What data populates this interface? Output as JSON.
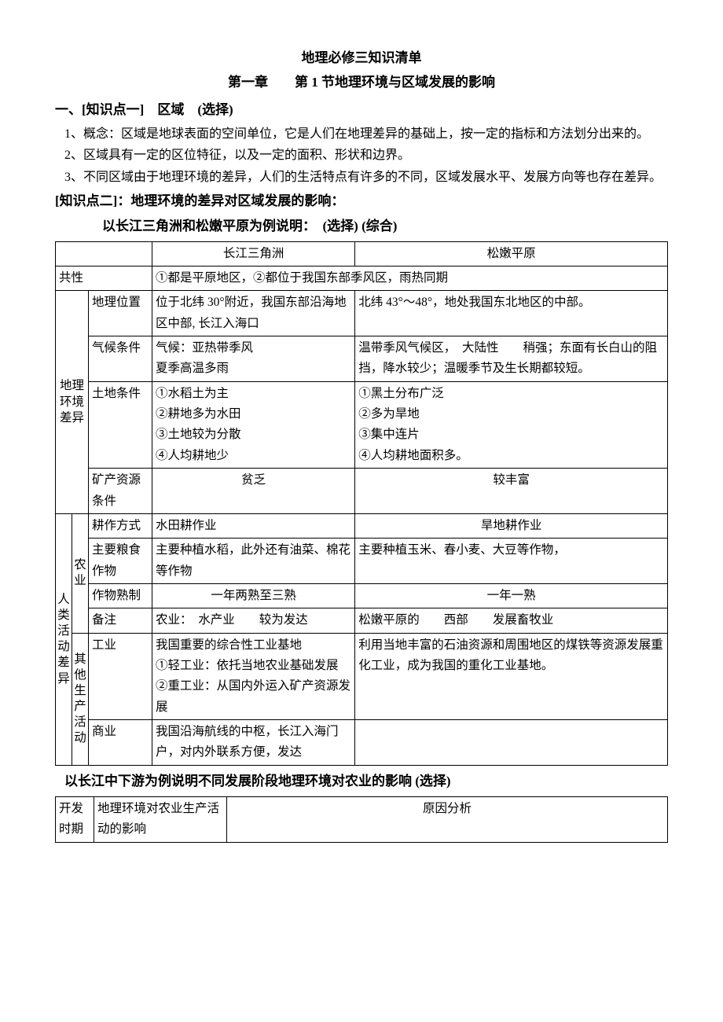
{
  "title": "地理必修三知识清单",
  "subtitle": "第一章　　第 1 节地理环境与区域发展的影响",
  "sec1_heading": "一、[知识点一]　区域　(选择)",
  "sec1_p1": "1、概念：区域是地球表面的空间单位，它是人们在地理差异的基础上，按一定的指标和方法划分出来的。",
  "sec1_p2": "2、区域具有一定的区位特征，以及一定的面积、形状和边界。",
  "sec1_p3": "3、不同区域由于地理环境的差异，人们的生活特点有许多的不同，区域发展水平、发展方向等也存在差异。",
  "sec2_heading": "[知识点二]：地理环境的差异对区域发展的影响：",
  "sec2_sub": "以长江三角洲和松嫩平原为例说明：　(选择)  (综合)",
  "table1": {
    "head_a": "长江三角洲",
    "head_b": "松嫩平原",
    "common_label": "共性",
    "common_val": "①都是平原地区，②都位于我国东部季风区，雨热同期",
    "env_label": "地理环境差异",
    "loc_label": "地理位置",
    "loc_a": "位于北纬 30°附近，我国东部沿海地区中部, 长江入海口",
    "loc_b": "北纬 43°～48°，地处我国东北地区的中部。",
    "climate_label": "气候条件",
    "climate_a": "气候：亚热带季风\n夏季高温多雨",
    "climate_b": "温带季风气候区，　大陆性　　稍强；东面有长白山的阻挡，降水较少；温暖季节及生长期都较短。",
    "land_label": "土地条件",
    "land_a": "①水稻土为主\n②耕地多为水田\n③土地较为分散\n④人均耕地少",
    "land_b": "①黑土分布广泛\n②多为旱地\n③集中连片\n④人均耕地面积多。",
    "mineral_label": "矿产资源条件",
    "mineral_a": "贫乏",
    "mineral_b": "较丰富",
    "act_label": "人类活动差异",
    "agri_label": "农业",
    "farm_mode_label": "耕作方式",
    "farm_mode_a": "水田耕作业",
    "farm_mode_b": "旱地耕作业",
    "crop_label": "主要粮食作物",
    "crop_a": "主要种植水稻，此外还有油菜、棉花等作物",
    "crop_b": "主要种植玉米、春小麦、大豆等作物，",
    "ripe_label": "作物熟制",
    "ripe_a": "一年两熟至三熟",
    "ripe_b": "一年一熟",
    "note_label": "备注",
    "note_a": "农业：　水产业　　较为发达",
    "note_b": "松嫩平原的　　西部　　发展畜牧业",
    "other_label": "其他生产活动",
    "ind_label": "工业",
    "ind_a": "我国重要的综合性工业基地\n①轻工业：依托当地农业基础发展\n②重工业：从国内外运入矿产资源发展",
    "ind_b": "利用当地丰富的石油资源和周围地区的煤铁等资源发展重化工业，成为我国的重化工业基地。",
    "com_label": "商业",
    "com_a": "我国沿海航线的中枢，长江入海门户，对内外联系方便，发达"
  },
  "sec3_heading": "以长江中下游为例说明不同发展阶段地理环境对农业的影响 (选择)",
  "table2": {
    "col1": "开发时期",
    "col2": "地理环境对农业生产活动的影响",
    "col3": "原因分析"
  }
}
